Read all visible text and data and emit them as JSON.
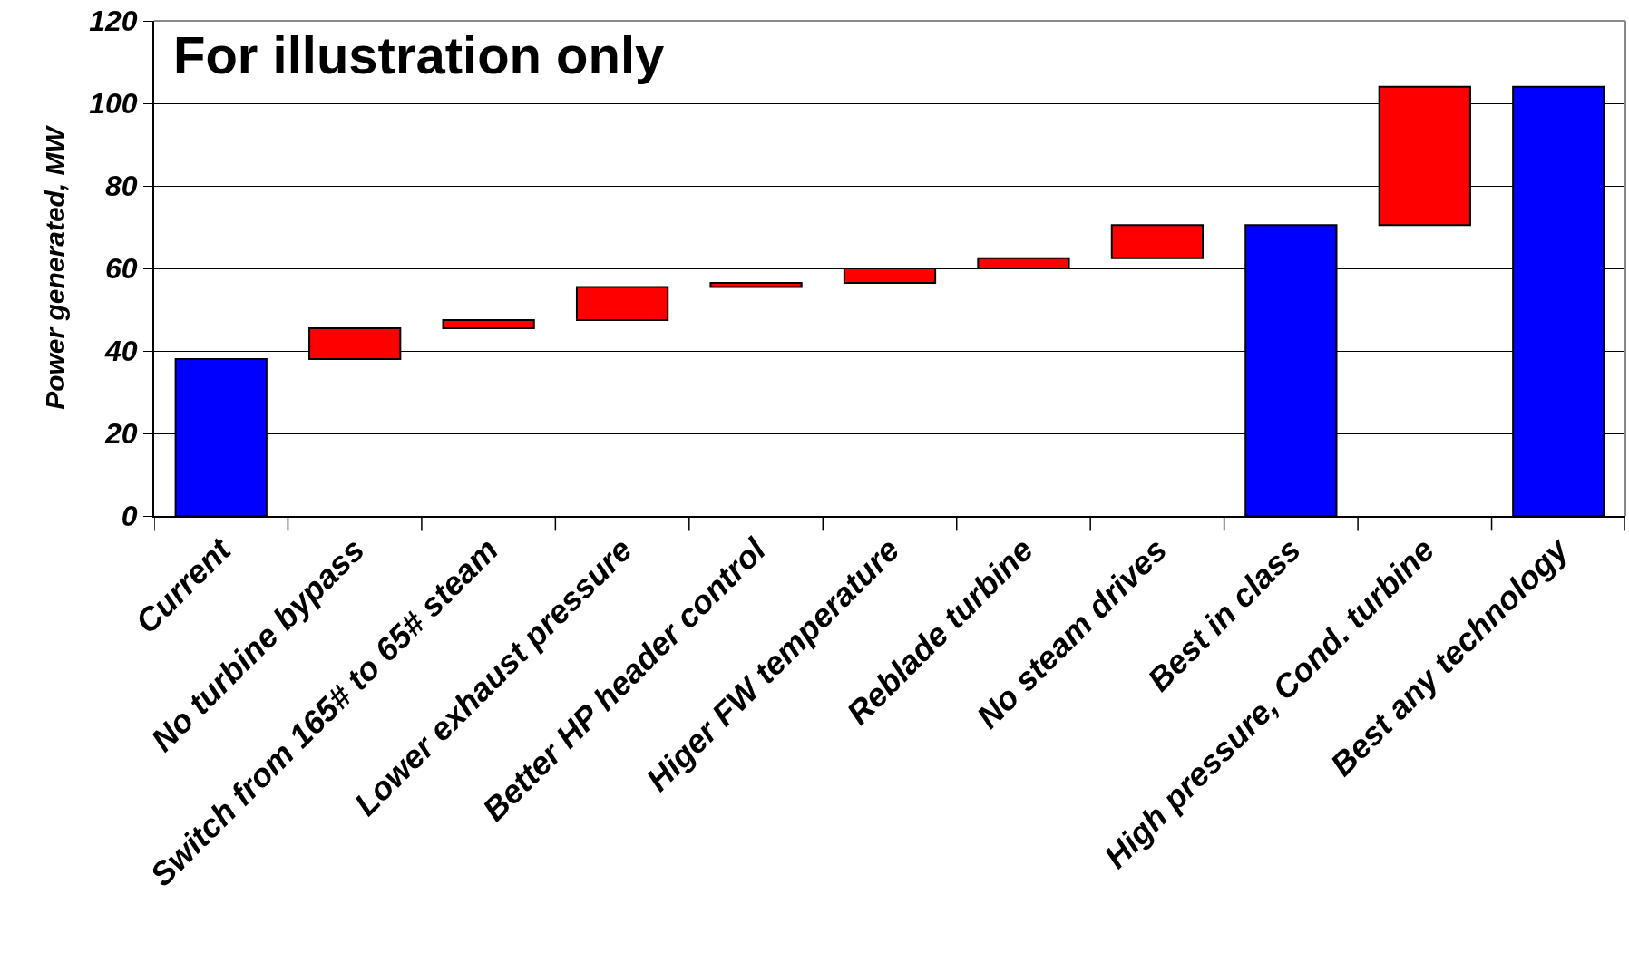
{
  "chart_data": {
    "type": "bar",
    "ylabel": "Power generated, MW",
    "categories": [
      "Current",
      "No turbine bypass",
      "Switch from 165# to 65# steam",
      "Lower exhaust pressure",
      "Better HP header control",
      "Higer FW temperature",
      "Reblade turbine",
      "No steam drives",
      "Best in class",
      "High pressure, Cond. turbine",
      "Best any technology"
    ],
    "values": [
      38,
      7.5,
      2,
      8,
      1,
      3.5,
      2.5,
      8,
      70.5,
      33.5,
      104
    ],
    "base": [
      0,
      38,
      45.5,
      47.5,
      55.5,
      56.5,
      60,
      62.5,
      0,
      70.5,
      0
    ],
    "colors": [
      "#0000ff",
      "#ff0000",
      "#ff0000",
      "#ff0000",
      "#ff0000",
      "#ff0000",
      "#ff0000",
      "#ff0000",
      "#0000ff",
      "#ff0000",
      "#0000ff"
    ],
    "ylim": [
      0,
      120
    ],
    "yticks": [
      0,
      20,
      40,
      60,
      80,
      100,
      120
    ],
    "grid": "y",
    "annotations": [
      "For illustration only"
    ]
  }
}
